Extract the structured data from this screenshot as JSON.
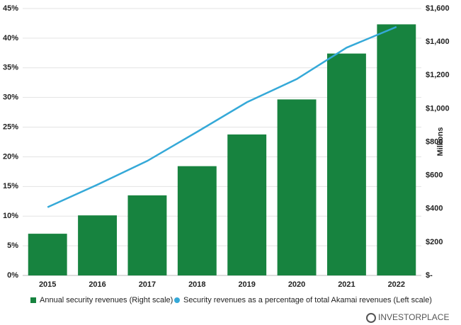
{
  "chart_data": {
    "type": "bar_line",
    "categories": [
      "2015",
      "2016",
      "2017",
      "2018",
      "2019",
      "2020",
      "2021",
      "2022"
    ],
    "series": [
      {
        "name": "Annual security revenues (Right scale)",
        "type": "bar",
        "axis": "y2",
        "color": "#17833f",
        "values": [
          250,
          360,
          480,
          655,
          845,
          1055,
          1330,
          1505
        ]
      },
      {
        "name": "Security revenues as a percentage of total Akamai revenues (Left scale)",
        "type": "line",
        "axis": "y",
        "color": "#35a9d8",
        "values": [
          11.5,
          15.3,
          19.3,
          24.2,
          29.2,
          33.1,
          38.4,
          41.9
        ]
      }
    ],
    "ylim": [
      0,
      45
    ],
    "yticks": [
      {
        "value": 0,
        "label": "0%"
      },
      {
        "value": 5,
        "label": "5%"
      },
      {
        "value": 10,
        "label": "10%"
      },
      {
        "value": 15,
        "label": "15%"
      },
      {
        "value": 20,
        "label": "20%"
      },
      {
        "value": 25,
        "label": "25%"
      },
      {
        "value": 30,
        "label": "30%"
      },
      {
        "value": 35,
        "label": "35%"
      },
      {
        "value": 40,
        "label": "40%"
      },
      {
        "value": 45,
        "label": "45%"
      }
    ],
    "y2lim": [
      0,
      1600
    ],
    "y2ticks": [
      {
        "value": 0,
        "label": "$-"
      },
      {
        "value": 200,
        "label": "$200"
      },
      {
        "value": 400,
        "label": "$400"
      },
      {
        "value": 600,
        "label": "$600"
      },
      {
        "value": 800,
        "label": "$800"
      },
      {
        "value": 1000,
        "label": "$1,000"
      },
      {
        "value": 1200,
        "label": "$1,200"
      },
      {
        "value": 1400,
        "label": "$1,400"
      },
      {
        "value": 1600,
        "label": "$1,600"
      }
    ],
    "y2label": "Millions",
    "grid": true,
    "legend": "bottom",
    "branding": "INVESTORPLACE"
  }
}
